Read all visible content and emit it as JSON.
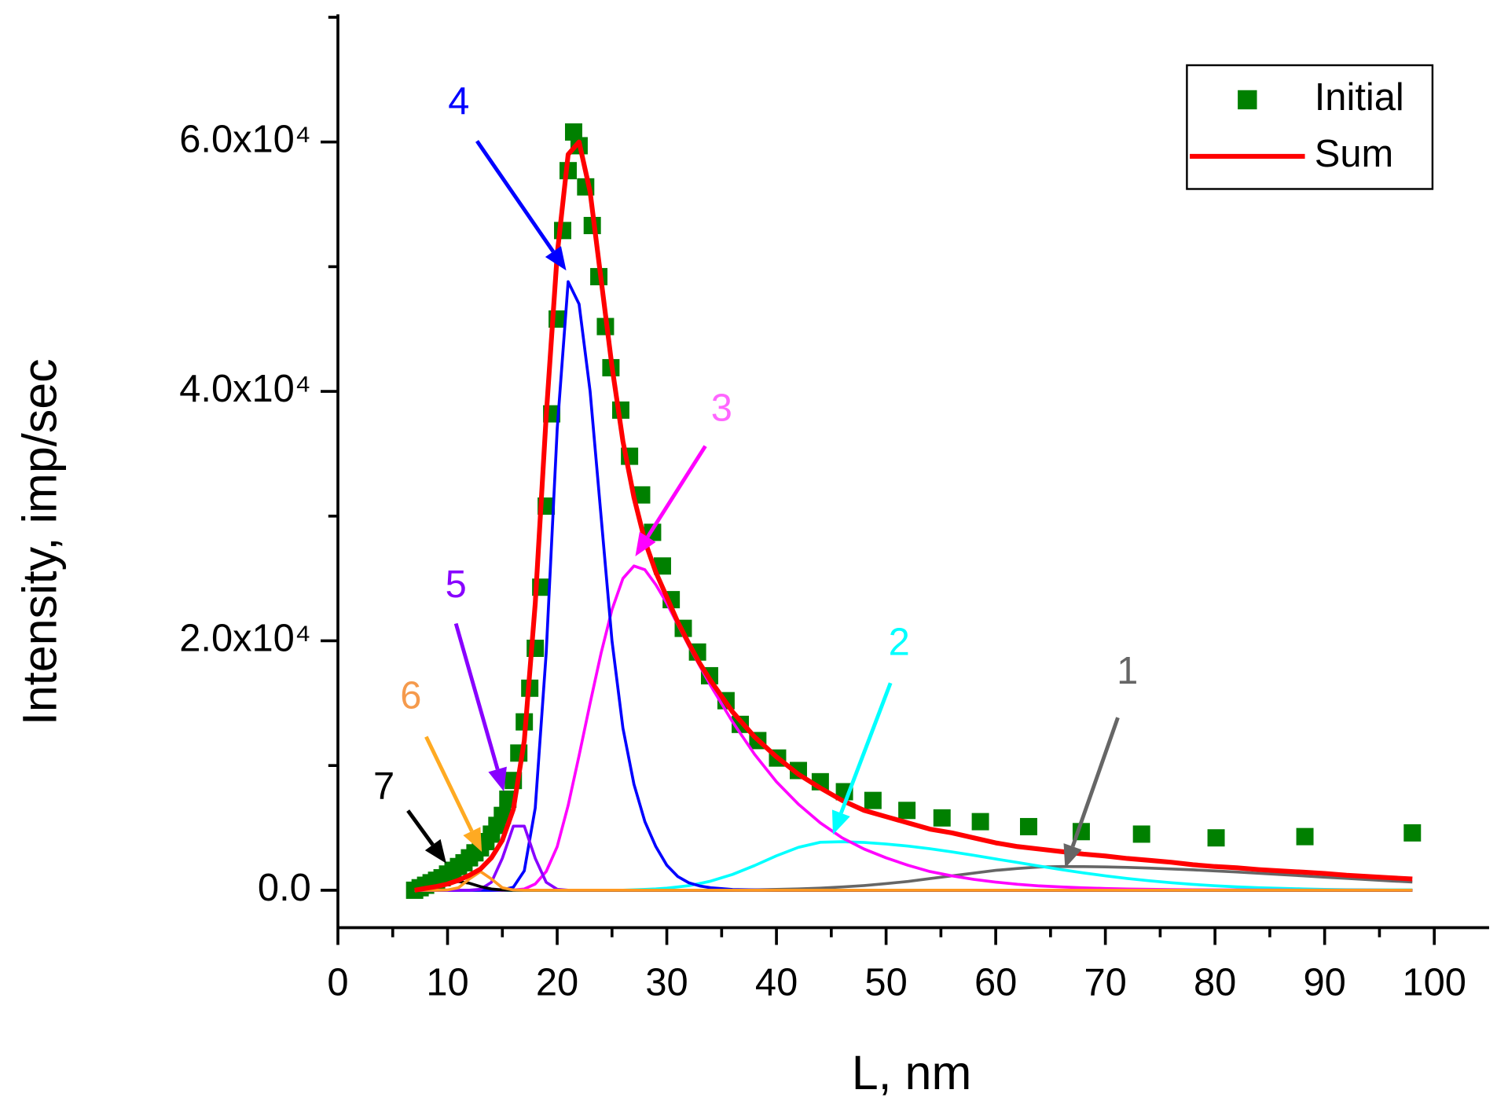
{
  "chart_data": {
    "type": "scatter-line",
    "xlabel": "L, nm",
    "ylabel": "Intensity, imp/sec",
    "xlim": [
      0,
      105
    ],
    "ylim": [
      -3000,
      70000
    ],
    "xticks": [
      0,
      10,
      20,
      30,
      40,
      50,
      60,
      70,
      80,
      90,
      100
    ],
    "xminorticks": [
      5,
      15,
      25,
      35,
      45,
      55,
      65,
      75,
      85,
      95
    ],
    "yticks": [
      {
        "value": 0,
        "label": "0.0"
      },
      {
        "value": 20000,
        "label": "2.0x10⁴"
      },
      {
        "value": 40000,
        "label": "4.0x10⁴"
      },
      {
        "value": 60000,
        "label": "6.0x10⁴"
      }
    ],
    "yminorticks": [
      10000,
      30000,
      50000,
      70000
    ],
    "legend": "upper right",
    "x": [
      7,
      8,
      9,
      10,
      11,
      12,
      13,
      14,
      15,
      16,
      17,
      18,
      19,
      20,
      21,
      22,
      23,
      24,
      25,
      26,
      27,
      28,
      29,
      30,
      31,
      32,
      33,
      34,
      36,
      38,
      40,
      42,
      44,
      46,
      48,
      50,
      52,
      54,
      56,
      58,
      60,
      62,
      64,
      66,
      68,
      70,
      72,
      74,
      76,
      78,
      80,
      82,
      84,
      86,
      88,
      90,
      92,
      94,
      96,
      98
    ],
    "series": [
      {
        "name": "Initial",
        "type": "scatter",
        "color": "#008000",
        "x": [
          7,
          7.5,
          8,
          8.5,
          9,
          9.5,
          10,
          10.5,
          11,
          11.5,
          12,
          12.5,
          13,
          13.5,
          14,
          14.5,
          15,
          15.5,
          16,
          16.5,
          17,
          17.5,
          18,
          18.5,
          19,
          19.5,
          20,
          20.5,
          21,
          21.5,
          22,
          22.6,
          23.2,
          23.8,
          24.4,
          24.9,
          25.8,
          26.6,
          27.7,
          28.7,
          29.6,
          30.4,
          31.5,
          32.8,
          33.9,
          35.4,
          36.7,
          38.3,
          40.1,
          42,
          44,
          46.2,
          48.8,
          51.9,
          55.1,
          58.6,
          63,
          67.8,
          73.3,
          80.1,
          88.2,
          98
        ],
        "values": [
          0,
          200,
          400,
          600,
          800,
          1000,
          1300,
          1600,
          1900,
          2200,
          2600,
          3000,
          3400,
          3900,
          4500,
          5200,
          6000,
          7300,
          8800,
          11000,
          13500,
          16200,
          19400,
          24300,
          30800,
          38200,
          45800,
          52900,
          57700,
          60800,
          59700,
          56400,
          53300,
          49200,
          45200,
          41900,
          38500,
          34800,
          31700,
          28700,
          26000,
          23300,
          21000,
          19100,
          17200,
          15200,
          13300,
          12000,
          10600,
          9600,
          8700,
          7900,
          7200,
          6400,
          5800,
          5500,
          5100,
          4700,
          4500,
          4200,
          4300,
          4600
        ]
      },
      {
        "name": "Sum",
        "type": "line",
        "color": "#ff0000",
        "values": [
          0,
          150,
          300,
          500,
          800,
          1200,
          1700,
          2600,
          4000,
          6500,
          12000,
          23000,
          38000,
          51000,
          59000,
          60000,
          56000,
          49000,
          42000,
          36000,
          31500,
          28000,
          25500,
          23500,
          21500,
          19800,
          18200,
          16800,
          14300,
          12300,
          10700,
          9300,
          8200,
          7200,
          6400,
          5900,
          5400,
          4900,
          4600,
          4200,
          3800,
          3500,
          3300,
          3100,
          2900,
          2750,
          2550,
          2400,
          2250,
          2050,
          1900,
          1800,
          1650,
          1550,
          1450,
          1350,
          1200,
          1100,
          1000,
          900
        ]
      }
    ],
    "components": [
      {
        "label": "1",
        "color": "#666666",
        "values": [
          0,
          0,
          0,
          0,
          0,
          0,
          0,
          0,
          0,
          0,
          0,
          0,
          0,
          0,
          0,
          0,
          0,
          0,
          0,
          0,
          0,
          0,
          0,
          0,
          0,
          0,
          0,
          0,
          10,
          30,
          70,
          110,
          170,
          260,
          380,
          530,
          710,
          930,
          1150,
          1380,
          1590,
          1750,
          1860,
          1900,
          1890,
          1870,
          1830,
          1780,
          1710,
          1640,
          1550,
          1460,
          1360,
          1260,
          1150,
          1050,
          950,
          850,
          750,
          660
        ]
      },
      {
        "label": "2",
        "color": "#00ffff",
        "values": [
          0,
          0,
          0,
          0,
          0,
          0,
          0,
          0,
          0,
          0,
          0,
          0,
          0,
          0,
          0,
          0,
          0,
          0,
          0,
          0,
          40,
          70,
          110,
          170,
          260,
          370,
          540,
          730,
          1270,
          1980,
          2760,
          3440,
          3850,
          3890,
          3830,
          3710,
          3540,
          3330,
          3080,
          2800,
          2510,
          2220,
          1930,
          1650,
          1390,
          1150,
          940,
          760,
          600,
          470,
          360,
          270,
          200,
          150,
          110,
          70,
          50,
          40,
          20,
          20
        ]
      },
      {
        "label": "3",
        "color": "#ff00ff",
        "values": [
          0,
          0,
          0,
          0,
          0,
          0,
          0,
          0,
          0,
          20,
          100,
          500,
          1500,
          3500,
          6800,
          10800,
          15000,
          19000,
          22500,
          25000,
          26000,
          25700,
          24500,
          23000,
          21300,
          19600,
          18000,
          16400,
          13500,
          10900,
          8700,
          6900,
          5400,
          4200,
          3300,
          2600,
          2000,
          1500,
          1150,
          870,
          650,
          480,
          350,
          260,
          190,
          140,
          100,
          75,
          55,
          40,
          30,
          22,
          16,
          12,
          9,
          6,
          5,
          4,
          3,
          2
        ]
      },
      {
        "label": "4",
        "color": "#0000ff",
        "values": [
          0,
          0,
          0,
          0,
          0,
          0,
          0,
          0,
          30,
          250,
          1560,
          6600,
          19000,
          37000,
          48800,
          47000,
          40000,
          30000,
          20000,
          13000,
          8500,
          5500,
          3500,
          2000,
          1100,
          600,
          350,
          200,
          60,
          20,
          0,
          0,
          0,
          0,
          0,
          0,
          0,
          0,
          0,
          0,
          0,
          0,
          0,
          0,
          0,
          0,
          0,
          0,
          0,
          0,
          0,
          0,
          0,
          0,
          0,
          0,
          0,
          0,
          0,
          0
        ]
      },
      {
        "label": "5",
        "color": "#8800ff",
        "values": [
          0,
          0,
          0,
          0,
          0,
          0,
          80,
          640,
          2560,
          5140,
          5140,
          2560,
          640,
          80,
          0,
          0,
          0,
          0,
          0,
          0,
          0,
          0,
          0,
          0,
          0,
          0,
          0,
          0,
          0,
          0,
          0,
          0,
          0,
          0,
          0,
          0,
          0,
          0,
          0,
          0,
          0,
          0,
          0,
          0,
          0,
          0,
          0,
          0,
          0,
          0,
          0,
          0,
          0,
          0,
          0,
          0,
          0,
          0,
          0,
          0
        ]
      },
      {
        "label": "7",
        "color": "#000000",
        "values": [
          20,
          100,
          290,
          560,
          700,
          560,
          290,
          100,
          20,
          0,
          0,
          0,
          0,
          0,
          0,
          0,
          0,
          0,
          0,
          0,
          0,
          0,
          0,
          0,
          0,
          0,
          0,
          0,
          0,
          0,
          0,
          0,
          0,
          0,
          0,
          0,
          0,
          0,
          0,
          0,
          0,
          0,
          0,
          0,
          0,
          0,
          0,
          0,
          0,
          0,
          0,
          0,
          0,
          0,
          0,
          0,
          0,
          0,
          0,
          0
        ]
      },
      {
        "label": "6",
        "color": "#ff9922",
        "values": [
          0,
          0,
          0,
          20,
          200,
          910,
          1500,
          910,
          200,
          20,
          0,
          0,
          0,
          0,
          0,
          0,
          0,
          0,
          0,
          0,
          0,
          0,
          0,
          0,
          0,
          0,
          0,
          0,
          0,
          0,
          0,
          0,
          0,
          0,
          0,
          0,
          0,
          0,
          0,
          0,
          0,
          0,
          0,
          0,
          0,
          0,
          0,
          0,
          0,
          0,
          0,
          0,
          0,
          0,
          0,
          0,
          0,
          0,
          0,
          0
        ]
      }
    ]
  }
}
